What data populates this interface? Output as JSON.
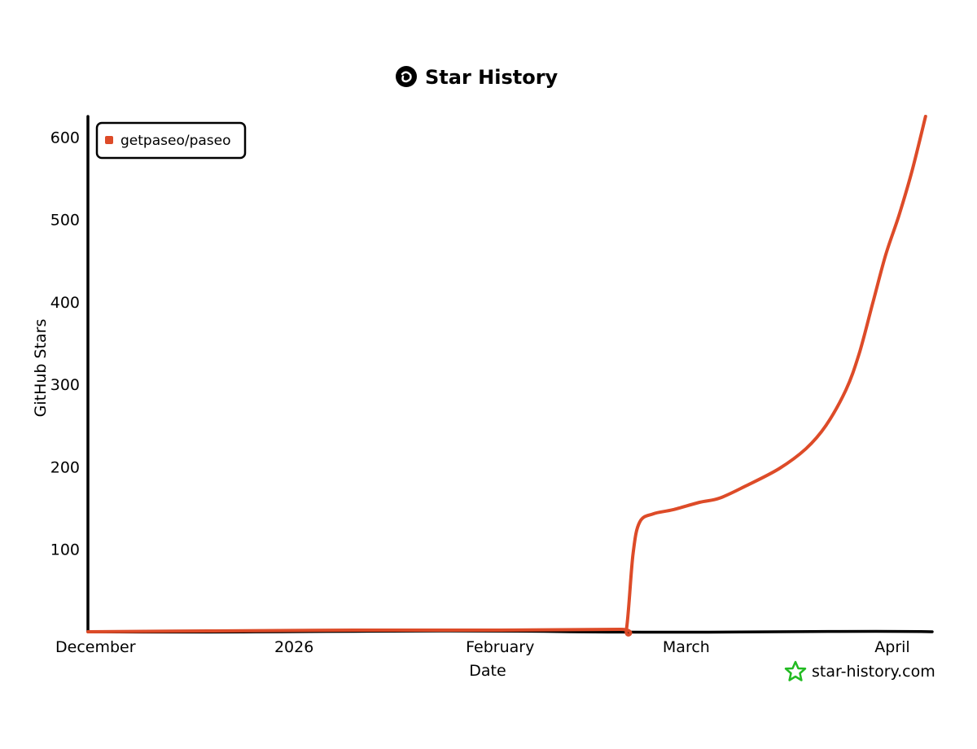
{
  "chart_data": {
    "type": "line",
    "title": "Star History",
    "xlabel": "Date",
    "ylabel": "GitHub Stars",
    "x_ticks": [
      "December",
      "2026",
      "February",
      "March",
      "April"
    ],
    "y_ticks": [
      100,
      200,
      300,
      400,
      500,
      600
    ],
    "ylim": [
      0,
      625
    ],
    "xlim": [
      "2025-12-01",
      "2026-04-07"
    ],
    "legend": {
      "position": "top-left",
      "entries": [
        "getpaseo/paseo"
      ]
    },
    "grid": false,
    "series": [
      {
        "name": "getpaseo/paseo",
        "color": "#dd4b28",
        "points": [
          [
            "2025-12-01",
            0
          ],
          [
            "2025-12-20",
            1
          ],
          [
            "2026-01-10",
            2
          ],
          [
            "2026-02-01",
            2
          ],
          [
            "2026-02-19",
            3
          ],
          [
            "2026-02-20",
            3
          ],
          [
            "2026-02-21",
            95
          ],
          [
            "2026-02-22",
            133
          ],
          [
            "2026-02-24",
            143
          ],
          [
            "2026-02-27",
            148
          ],
          [
            "2026-03-03",
            157
          ],
          [
            "2026-03-06",
            162
          ],
          [
            "2026-03-10",
            177
          ],
          [
            "2026-03-15",
            198
          ],
          [
            "2026-03-19",
            222
          ],
          [
            "2026-03-22",
            250
          ],
          [
            "2026-03-25",
            293
          ],
          [
            "2026-03-27",
            337
          ],
          [
            "2026-03-29",
            397
          ],
          [
            "2026-03-31",
            457
          ],
          [
            "2026-04-02",
            505
          ],
          [
            "2026-04-04",
            560
          ],
          [
            "2026-04-06",
            625
          ]
        ]
      }
    ]
  },
  "watermark": {
    "text": "star-history.com",
    "icon": "star-icon",
    "color": "#22bb22"
  },
  "title_icon": "star-history-logo-icon"
}
